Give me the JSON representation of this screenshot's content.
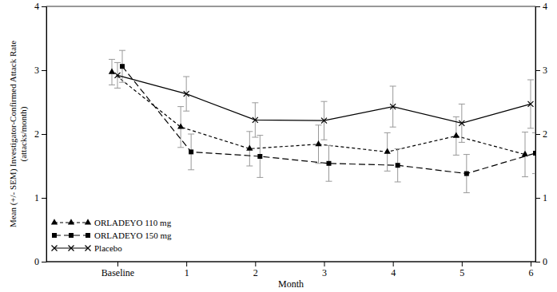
{
  "chart_data": {
    "type": "line",
    "x_label": "Month",
    "y_label": [
      "Mean (+/- SEM) Investigator-Confirmed Attack Rate",
      "(attacks/month)"
    ],
    "categories": [
      "Baseline",
      "1",
      "2",
      "3",
      "4",
      "5",
      "6"
    ],
    "ylim": [
      0,
      4
    ],
    "yticks": [
      0,
      1,
      2,
      3,
      4
    ],
    "legend": "lower left",
    "series": [
      {
        "name": "ORLADEYO 110 mg",
        "color": "#000000",
        "marker": "triangle",
        "line_style": "dashed",
        "values": [
          2.97,
          2.11,
          1.77,
          1.84,
          1.72,
          1.97,
          1.68
        ],
        "errors": [
          0.2,
          0.32,
          0.27,
          0.3,
          0.3,
          0.3,
          0.35
        ]
      },
      {
        "name": "ORLADEYO 150 mg",
        "color": "#000000",
        "marker": "square",
        "line_style": "long-dashed",
        "values": [
          3.06,
          1.72,
          1.65,
          1.54,
          1.51,
          1.38,
          1.7
        ],
        "errors": [
          0.25,
          0.28,
          0.33,
          0.28,
          0.26,
          0.3,
          0.32
        ]
      },
      {
        "name": "Placebo",
        "color": "#000000",
        "marker": "x",
        "line_style": "solid",
        "values": [
          2.92,
          2.63,
          2.22,
          2.21,
          2.43,
          2.17,
          2.47
        ],
        "errors": [
          0.2,
          0.27,
          0.27,
          0.3,
          0.32,
          0.3,
          0.38
        ]
      }
    ]
  }
}
